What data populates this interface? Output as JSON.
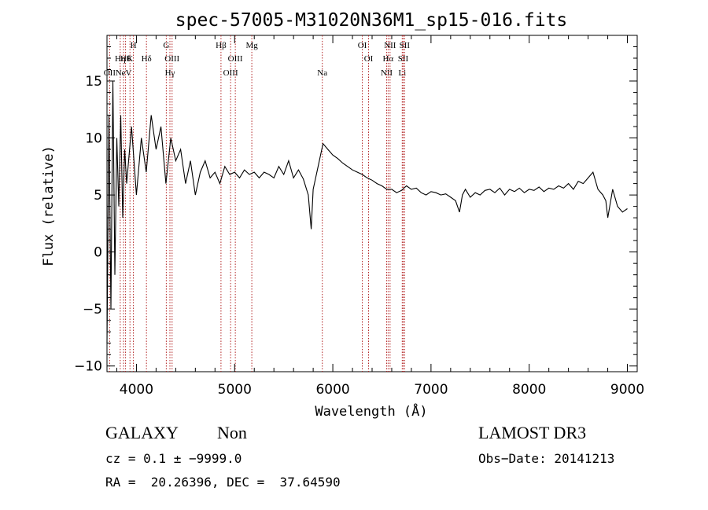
{
  "chart_data": {
    "type": "line",
    "title": "spec-57005-M31020N36M1_sp15-016.fits",
    "xlabel": "Wavelength (Å)",
    "ylabel": "Flux (relative)",
    "xlim": [
      3700,
      9100
    ],
    "ylim": [
      -10.5,
      19
    ],
    "xticks": [
      4000,
      5000,
      6000,
      7000,
      8000,
      9000
    ],
    "xtick_labels": [
      "4000",
      "5000",
      "6000",
      "7000",
      "8000",
      "9000"
    ],
    "yticks": [
      -10,
      -5,
      0,
      5,
      10,
      15
    ],
    "ytick_labels": [
      "−10",
      "−5",
      "0",
      "5",
      "10",
      "15"
    ],
    "line_color": "#000000",
    "marker_color": "#b22222",
    "series": [
      {
        "x": [
          3700,
          3720,
          3740,
          3760,
          3780,
          3800,
          3820,
          3840,
          3860,
          3880,
          3900,
          3950,
          4000,
          4050,
          4100,
          4150,
          4200,
          4250,
          4300,
          4350,
          4400,
          4450,
          4500,
          4550,
          4600,
          4650,
          4700,
          4750,
          4800,
          4850,
          4900,
          4950,
          5000,
          5050,
          5100,
          5150,
          5200,
          5250,
          5300,
          5350,
          5400,
          5450,
          5500,
          5550,
          5600,
          5650,
          5700,
          5750,
          5780,
          5800,
          5850,
          5900,
          5950,
          6000,
          6050,
          6100,
          6150,
          6200,
          6250,
          6300,
          6350,
          6400,
          6450,
          6500,
          6550,
          6600,
          6650,
          6700,
          6750,
          6800,
          6850,
          6900,
          6950,
          7000,
          7050,
          7100,
          7150,
          7200,
          7250,
          7290,
          7320,
          7350,
          7400,
          7450,
          7500,
          7550,
          7600,
          7650,
          7700,
          7750,
          7800,
          7850,
          7900,
          7950,
          8000,
          8050,
          8100,
          8150,
          8200,
          8250,
          8300,
          8350,
          8400,
          8450,
          8500,
          8550,
          8600,
          8650,
          8700,
          8750,
          8780,
          8800,
          8850,
          8900,
          8950,
          9000
        ],
        "y": [
          -8,
          12,
          -5,
          15,
          -2,
          10,
          4,
          12,
          3,
          9,
          6,
          11,
          5,
          10,
          7,
          12,
          9,
          11,
          6,
          10,
          8,
          9,
          6,
          8,
          5,
          7,
          8,
          6.5,
          7,
          6,
          7.5,
          6.8,
          7,
          6.5,
          7.2,
          6.8,
          7,
          6.5,
          7,
          6.8,
          6.5,
          7.5,
          6.8,
          8,
          6.5,
          7.2,
          6.4,
          5,
          2,
          5.5,
          7.5,
          9.5,
          9,
          8.5,
          8.2,
          7.8,
          7.5,
          7.2,
          7,
          6.8,
          6.5,
          6.3,
          6,
          5.8,
          5.5,
          5.5,
          5.2,
          5.4,
          5.8,
          5.5,
          5.6,
          5.2,
          5,
          5.3,
          5.2,
          5,
          5.1,
          4.8,
          4.5,
          3.5,
          5,
          5.5,
          4.8,
          5.2,
          5,
          5.4,
          5.5,
          5.2,
          5.6,
          5,
          5.5,
          5.3,
          5.6,
          5.2,
          5.5,
          5.4,
          5.7,
          5.3,
          5.6,
          5.5,
          5.8,
          5.6,
          6,
          5.5,
          6.2,
          6,
          6.5,
          7,
          5.5,
          5,
          4.5,
          3,
          5.5,
          4,
          3.5,
          3.8
        ]
      }
    ],
    "line_markers": [
      {
        "x": 3727,
        "label": "OII",
        "row": 2
      },
      {
        "x": 3835,
        "label": "Hη",
        "row": 1
      },
      {
        "x": 3869,
        "label": "NeV",
        "row": 2
      },
      {
        "x": 3889,
        "label": "Hθ",
        "row": 1
      },
      {
        "x": 3934,
        "label": "K",
        "row": 1
      },
      {
        "x": 3969,
        "label": "H",
        "row": 0
      },
      {
        "x": 4102,
        "label": "Hδ",
        "row": 1
      },
      {
        "x": 4304,
        "label": "G",
        "row": 0
      },
      {
        "x": 4341,
        "label": "Hγ",
        "row": 2
      },
      {
        "x": 4363,
        "label": "OIII",
        "row": 1
      },
      {
        "x": 4861,
        "label": "Hβ",
        "row": 0
      },
      {
        "x": 4959,
        "label": "OIII",
        "row": 2
      },
      {
        "x": 5007,
        "label": "OIII",
        "row": 1
      },
      {
        "x": 5175,
        "label": "Mg",
        "row": 0
      },
      {
        "x": 5893,
        "label": "Na",
        "row": 2
      },
      {
        "x": 6300,
        "label": "OI",
        "row": 0
      },
      {
        "x": 6364,
        "label": "OI",
        "row": 1
      },
      {
        "x": 6548,
        "label": "NII",
        "row": 2
      },
      {
        "x": 6563,
        "label": "Hα",
        "row": 1
      },
      {
        "x": 6583,
        "label": "NII",
        "row": 0
      },
      {
        "x": 6707,
        "label": "Li",
        "row": 2
      },
      {
        "x": 6716,
        "label": "SII",
        "row": 1
      },
      {
        "x": 6731,
        "label": "SII",
        "row": 0
      }
    ],
    "grid": false
  },
  "info": {
    "class": "GALAXY",
    "subclass": "Non",
    "survey": "LAMOST DR3",
    "cz": "cz = 0.1 ± −9999.0",
    "obsdate": "Obs−Date: 20141213",
    "coords": "RA =  20.26396, DEC =  37.64590"
  }
}
